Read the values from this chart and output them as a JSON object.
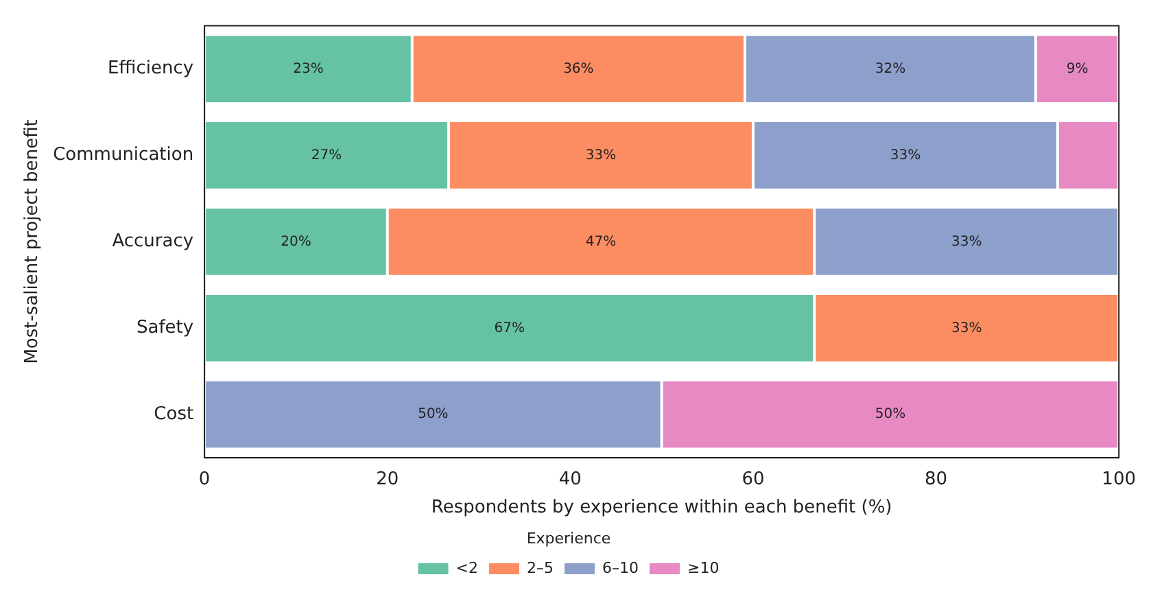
{
  "chart_data": {
    "type": "bar",
    "orientation": "horizontal",
    "stacked": true,
    "xlabel": "Respondents by experience within each benefit (%)",
    "ylabel": "Most-salient project benefit",
    "legend_title": "Experience",
    "legend": "bottom",
    "categories": [
      "Efficiency",
      "Communication",
      "Accuracy",
      "Safety",
      "Cost"
    ],
    "xlim": [
      0,
      100
    ],
    "xticks": [
      0,
      20,
      40,
      60,
      80,
      100
    ],
    "series": [
      {
        "name": "<2",
        "color": "#66c2a5",
        "values": [
          22.7,
          26.7,
          20,
          66.7,
          0
        ],
        "value_labels": [
          "23%",
          "27%",
          "20%",
          "67%",
          null
        ]
      },
      {
        "name": "2–5",
        "color": "#fc8d62",
        "values": [
          36.4,
          33.3,
          46.7,
          33.3,
          0
        ],
        "value_labels": [
          "36%",
          "33%",
          "47%",
          "33%",
          null
        ]
      },
      {
        "name": "6–10",
        "color": "#8da0cb",
        "values": [
          31.8,
          33.3,
          33.3,
          0,
          50
        ],
        "value_labels": [
          "32%",
          "33%",
          "33%",
          null,
          "50%"
        ]
      },
      {
        "name": "≥10",
        "color": "#e78ac3",
        "values": [
          9.1,
          6.7,
          0,
          0,
          50
        ],
        "value_labels": [
          "9%",
          null,
          null,
          null,
          "50%"
        ]
      }
    ]
  }
}
